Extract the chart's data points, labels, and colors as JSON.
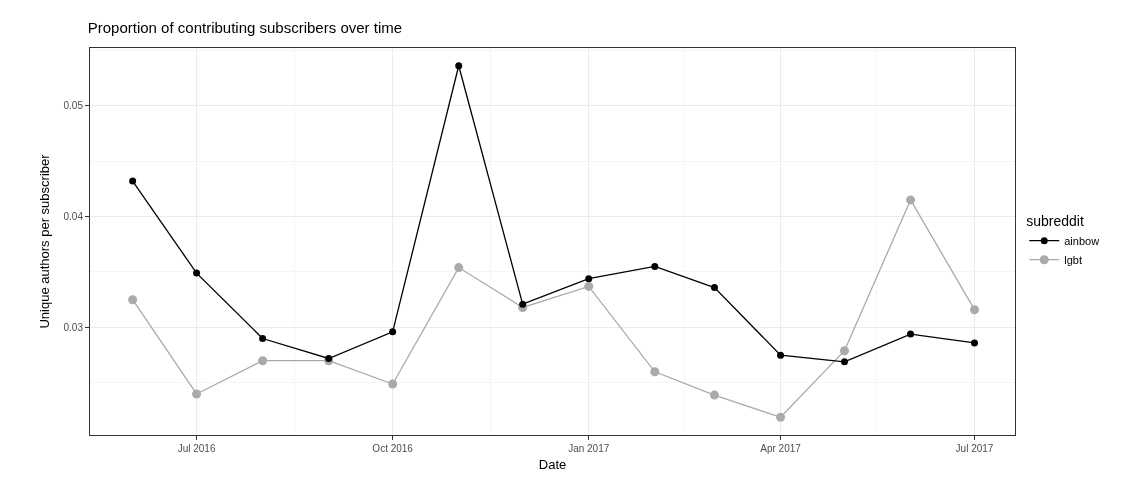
{
  "chart_data": {
    "type": "line",
    "title": "Proportion of contributing subscribers over time",
    "xlabel": "Date",
    "ylabel": "Unique authors per subscriber",
    "legend_title": "subreddit",
    "x": [
      "2016-06-01",
      "2016-07-01",
      "2016-08-01",
      "2016-09-01",
      "2016-10-01",
      "2016-11-01",
      "2016-12-01",
      "2017-01-01",
      "2017-02-01",
      "2017-03-01",
      "2017-04-01",
      "2017-05-01",
      "2017-06-01",
      "2017-07-01"
    ],
    "series": [
      {
        "name": "ainbow",
        "color": "#000000",
        "values": [
          0.0432,
          0.0349,
          0.029,
          0.0272,
          0.0296,
          0.0536,
          0.0321,
          0.0344,
          0.0355,
          0.0336,
          0.0275,
          0.0269,
          0.0294,
          0.0286
        ]
      },
      {
        "name": "lgbt",
        "color": "#aaaaaa",
        "values": [
          0.0325,
          0.024,
          0.027,
          0.027,
          0.0249,
          0.0354,
          0.0318,
          0.0337,
          0.026,
          0.0239,
          0.0219,
          0.0279,
          0.0415,
          0.0316
        ]
      }
    ],
    "xlim": [
      "2016-05-12",
      "2017-07-20"
    ],
    "xticks": [
      {
        "value": "2016-07-01",
        "label": "Jul 2016"
      },
      {
        "value": "2016-10-01",
        "label": "Oct 2016"
      },
      {
        "value": "2017-01-01",
        "label": "Jan 2017"
      },
      {
        "value": "2017-04-01",
        "label": "Apr 2017"
      },
      {
        "value": "2017-07-01",
        "label": "Jul 2017"
      }
    ],
    "ylim": [
      0.0203,
      0.0552
    ],
    "yticks": [
      0.03,
      0.04,
      0.05
    ],
    "grid": true,
    "legend": "right",
    "marker": "circle",
    "line_style": "solid"
  }
}
